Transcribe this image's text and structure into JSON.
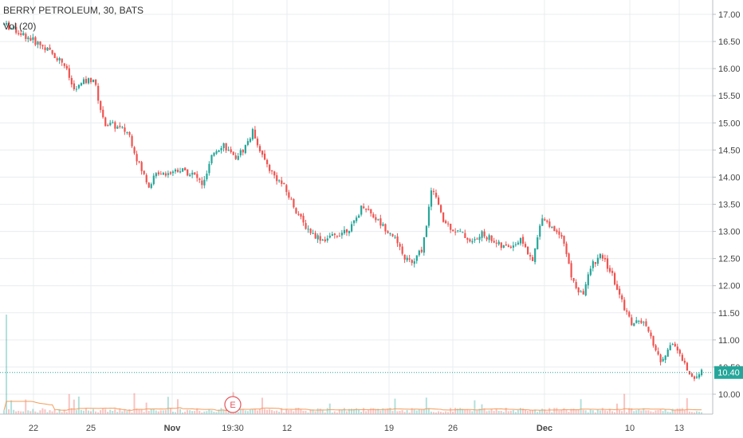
{
  "chart_data": {
    "type": "candlestick",
    "title": "BERRY PETROLEUM, 30, BATS",
    "volume_legend": "Vol (20)",
    "ylim": [
      9.7,
      17.1
    ],
    "y_ticks": [
      "17.00",
      "16.50",
      "16.00",
      "15.50",
      "15.00",
      "14.50",
      "14.00",
      "13.50",
      "13.00",
      "12.50",
      "12.00",
      "11.50",
      "11.00",
      "10.50",
      "10.00"
    ],
    "x_ticks": [
      "22",
      "25",
      "Nov",
      "19:30",
      "12",
      "19",
      "26",
      "Dec",
      "10",
      "13"
    ],
    "last_price": "10.40",
    "last_price_value": 10.4,
    "earnings_marker": "E",
    "grid": true,
    "colors": {
      "up": "#26a69a",
      "down": "#ef5350",
      "grid": "#e9ecef",
      "ma": "#f39c5a"
    },
    "price_path": [
      [
        0,
        16.82
      ],
      [
        4,
        16.62
      ],
      [
        8,
        16.4
      ],
      [
        12,
        16.1
      ],
      [
        14,
        15.6
      ],
      [
        16,
        15.75
      ],
      [
        18,
        15.82
      ],
      [
        20,
        15.0
      ],
      [
        22,
        14.95
      ],
      [
        25,
        14.82
      ],
      [
        27,
        14.25
      ],
      [
        29,
        13.85
      ],
      [
        31,
        14.1
      ],
      [
        33,
        14.08
      ],
      [
        35,
        14.15
      ],
      [
        38,
        14.05
      ],
      [
        40,
        13.85
      ],
      [
        42,
        14.45
      ],
      [
        44,
        14.62
      ],
      [
        46,
        14.35
      ],
      [
        48,
        14.5
      ],
      [
        50,
        14.85
      ],
      [
        52,
        14.35
      ],
      [
        54,
        14.05
      ],
      [
        56,
        13.85
      ],
      [
        58,
        13.5
      ],
      [
        60,
        13.15
      ],
      [
        62,
        12.95
      ],
      [
        64,
        12.85
      ],
      [
        66,
        12.9
      ],
      [
        68,
        13.0
      ],
      [
        70,
        13.1
      ],
      [
        72,
        13.5
      ],
      [
        74,
        13.3
      ],
      [
        76,
        13.1
      ],
      [
        78,
        12.95
      ],
      [
        80,
        12.55
      ],
      [
        82,
        12.4
      ],
      [
        84,
        12.7
      ],
      [
        86,
        13.85
      ],
      [
        88,
        13.2
      ],
      [
        90,
        13.05
      ],
      [
        92,
        12.95
      ],
      [
        94,
        12.8
      ],
      [
        96,
        12.95
      ],
      [
        98,
        12.85
      ],
      [
        100,
        12.7
      ],
      [
        102,
        12.75
      ],
      [
        104,
        12.85
      ],
      [
        106,
        12.4
      ],
      [
        108,
        13.3
      ],
      [
        110,
        13.05
      ],
      [
        112,
        12.95
      ],
      [
        114,
        12.1
      ],
      [
        116,
        11.8
      ],
      [
        118,
        12.4
      ],
      [
        120,
        12.55
      ],
      [
        122,
        12.2
      ],
      [
        124,
        11.7
      ],
      [
        126,
        11.3
      ],
      [
        128,
        11.35
      ],
      [
        130,
        11.0
      ],
      [
        132,
        10.55
      ],
      [
        134,
        11.0
      ],
      [
        136,
        10.65
      ],
      [
        138,
        10.3
      ],
      [
        140,
        10.4
      ]
    ]
  }
}
